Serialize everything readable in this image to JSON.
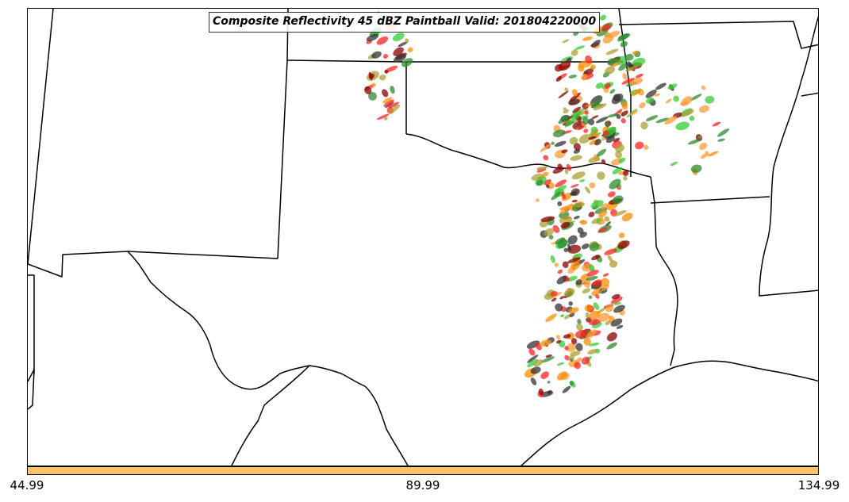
{
  "title": "Composite Reflectivity 45 dBZ Paintball Valid: 201804220000",
  "colorbar": {
    "color": "#ffc266",
    "tick_labels": [
      "44.99",
      "89.99",
      "134.99"
    ]
  },
  "paint_colors": [
    "#33cc33",
    "#2e8b2e",
    "#8b0000",
    "#ff2222",
    "#ff8c00",
    "#aaa030",
    "#333333",
    "#ff9933"
  ]
}
